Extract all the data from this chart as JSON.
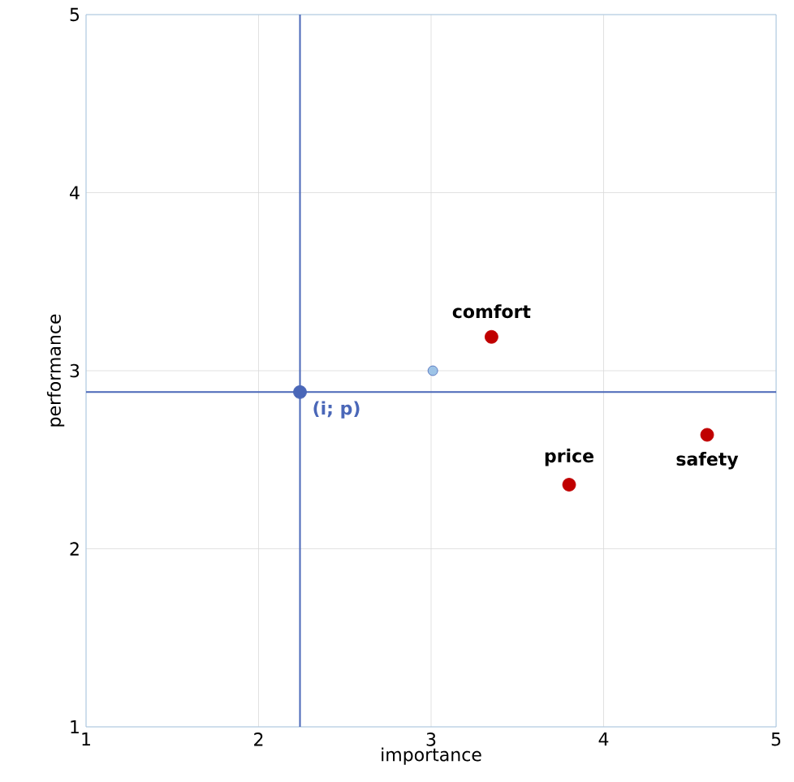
{
  "chart_data": {
    "type": "scatter",
    "xlabel": "importance",
    "ylabel": "performance",
    "xlim": [
      1,
      5
    ],
    "ylim": [
      1,
      5
    ],
    "xticks": [
      1,
      2,
      3,
      4,
      5
    ],
    "yticks": [
      1,
      2,
      3,
      4,
      5
    ],
    "grid": true,
    "marker": "circle",
    "series": [
      {
        "name": "comfort",
        "color": "#c00000",
        "x": [
          3.35
        ],
        "values": [
          3.19
        ]
      },
      {
        "name": "price",
        "color": "#c00000",
        "x": [
          3.8
        ],
        "values": [
          2.36
        ]
      },
      {
        "name": "safety",
        "color": "#c00000",
        "x": [
          4.6
        ],
        "values": [
          2.64
        ]
      },
      {
        "name": "(i; p)",
        "color": "#4a67b8",
        "x": [
          2.24
        ],
        "values": [
          2.88
        ]
      },
      {
        "color": "#9dc3e6",
        "x": [
          3.01
        ],
        "values": [
          3.0
        ]
      }
    ],
    "ref_lines": [
      {
        "axis": "x",
        "value": 2.24,
        "color": "#4a67b8"
      },
      {
        "axis": "y",
        "value": 2.88,
        "color": "#4a67b8"
      }
    ]
  }
}
